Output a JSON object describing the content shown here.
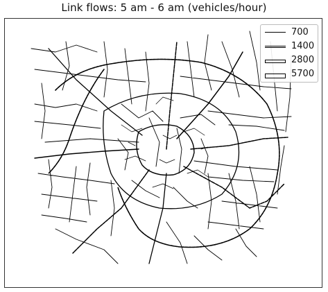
{
  "title": "Link flows: 5 am - 6 am (vehicles/hour)",
  "legend": {
    "placement": "top-right",
    "entries": [
      {
        "label": "700"
      },
      {
        "label": "1400"
      },
      {
        "label": "2800"
      },
      {
        "label": "5700"
      }
    ]
  },
  "colors": {
    "line": "#000000",
    "background": "#ffffff",
    "frame": "#333333",
    "legend_border": "#bbbbbb"
  }
}
